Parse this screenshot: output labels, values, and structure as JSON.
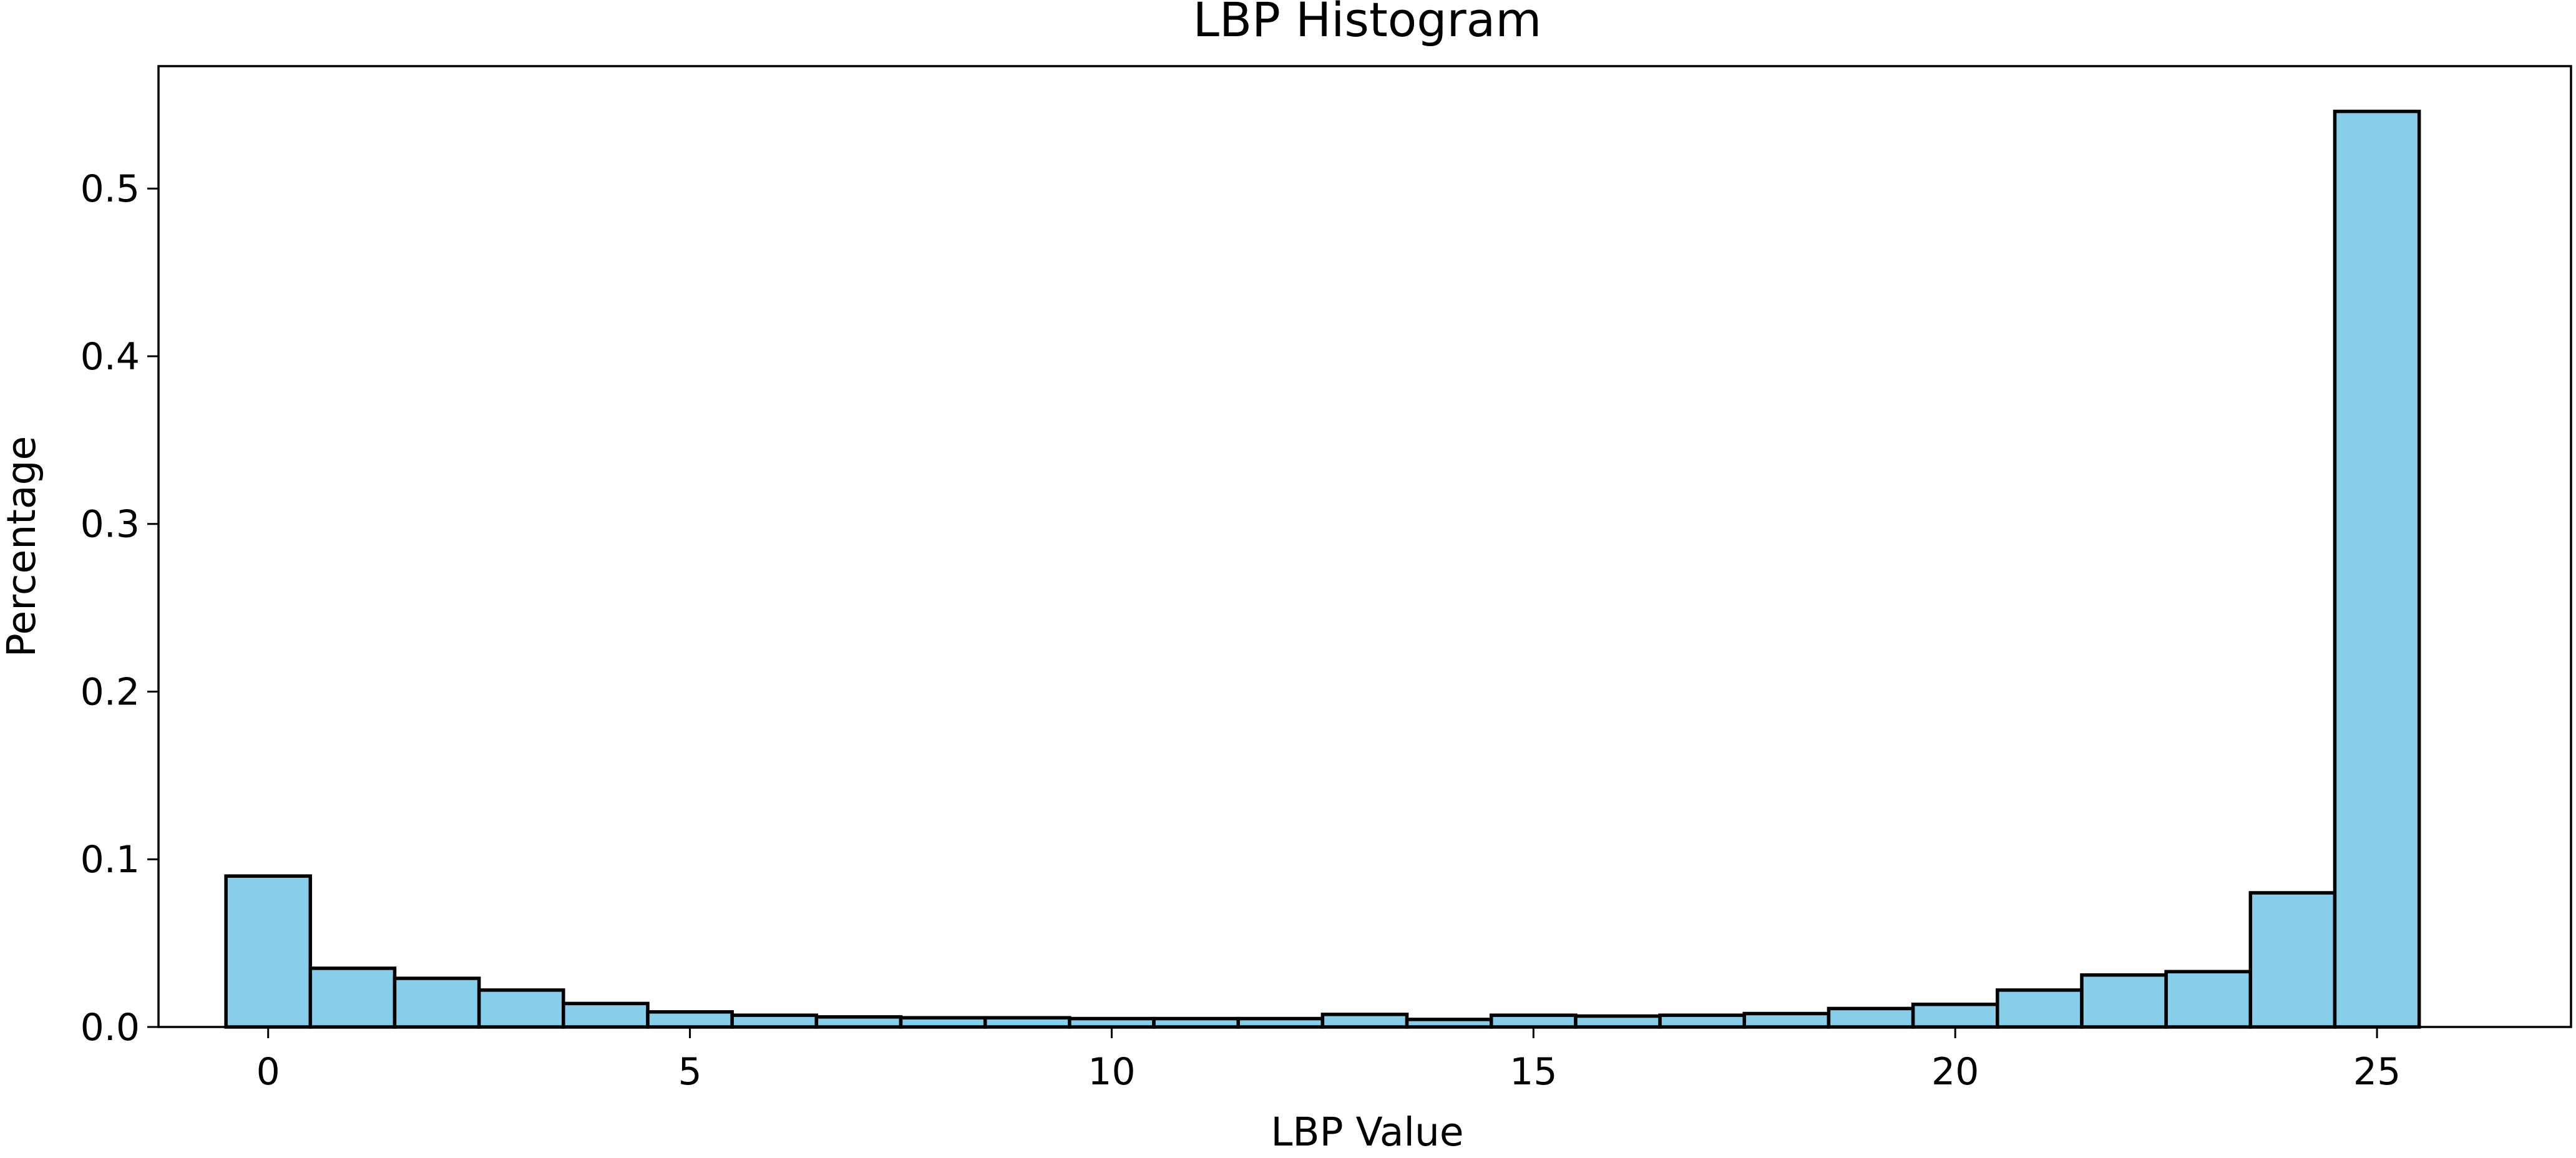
{
  "chart_data": {
    "type": "bar",
    "title": "LBP Histogram",
    "xlabel": "LBP Value",
    "ylabel": "Percentage",
    "x": [
      0,
      1,
      2,
      3,
      4,
      5,
      6,
      7,
      8,
      9,
      10,
      11,
      12,
      13,
      14,
      15,
      16,
      17,
      18,
      19,
      20,
      21,
      22,
      23,
      24,
      25
    ],
    "values": [
      0.09,
      0.035,
      0.029,
      0.022,
      0.014,
      0.009,
      0.007,
      0.006,
      0.0055,
      0.0055,
      0.005,
      0.005,
      0.005,
      0.0075,
      0.0045,
      0.007,
      0.0065,
      0.007,
      0.008,
      0.011,
      0.0135,
      0.022,
      0.031,
      0.033,
      0.08,
      0.546
    ],
    "xlim": [
      -1.3,
      27.3
    ],
    "ylim": [
      0,
      0.573
    ],
    "xticks": [
      0,
      5,
      10,
      15,
      20,
      25
    ],
    "yticks": [
      0.0,
      0.1,
      0.2,
      0.3,
      0.4,
      0.5
    ],
    "yticks_labels": [
      "0.0",
      "0.1",
      "0.2",
      "0.3",
      "0.4",
      "0.5"
    ],
    "bar_color": "#87CEEB",
    "edge_color": "#000000",
    "grid": false
  }
}
